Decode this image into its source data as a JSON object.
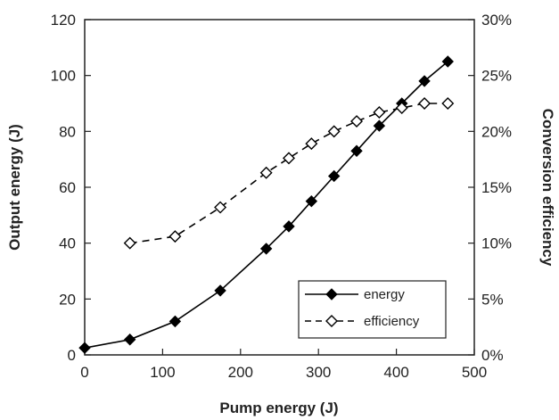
{
  "chart_data": {
    "type": "line",
    "title": "",
    "xlabel": "Pump energy (J)",
    "ylabel": "Output energy (J)",
    "y2label": "Conversion efficiency",
    "xlim": [
      0,
      500
    ],
    "ylim": [
      0,
      120
    ],
    "y2lim": [
      0,
      0.3
    ],
    "xticks": [
      "0",
      "100",
      "200",
      "300",
      "400",
      "500"
    ],
    "yticks": [
      "0",
      "20",
      "40",
      "60",
      "80",
      "100",
      "120"
    ],
    "y2ticks": [
      "0%",
      "5%",
      "10%",
      "15%",
      "20%",
      "25%",
      "30%"
    ],
    "grid": false,
    "legend": {
      "position": "bottom-right",
      "entries": [
        "energy",
        "efficiency"
      ]
    },
    "series": [
      {
        "name": "energy",
        "axis": "left",
        "marker": "filled-diamond",
        "line": "solid",
        "color": "#000000",
        "x": [
          0,
          58,
          116,
          174,
          233,
          262,
          291,
          320,
          349,
          378,
          407,
          436,
          466
        ],
        "y": [
          2.5,
          5.5,
          12,
          23,
          38,
          46,
          55,
          64,
          73,
          82,
          90,
          98,
          105
        ]
      },
      {
        "name": "efficiency",
        "axis": "right",
        "marker": "open-diamond",
        "line": "dashed",
        "color": "#000000",
        "x": [
          58,
          116,
          174,
          233,
          262,
          291,
          320,
          349,
          378,
          407,
          436,
          466
        ],
        "y": [
          0.1,
          0.106,
          0.132,
          0.163,
          0.176,
          0.189,
          0.2,
          0.209,
          0.217,
          0.221,
          0.225,
          0.225
        ]
      }
    ]
  }
}
